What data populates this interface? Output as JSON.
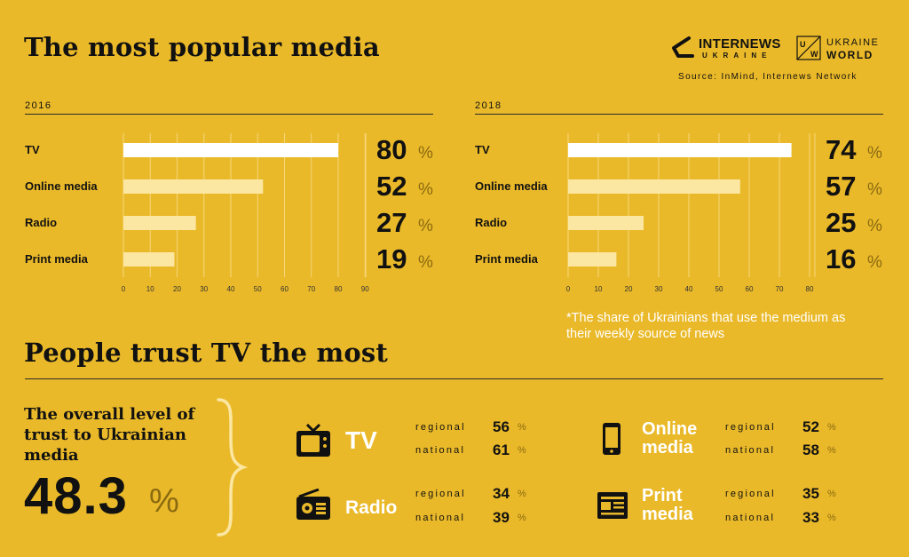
{
  "header": {
    "title": "The most popular media",
    "logo_internews": "INTERNEWS",
    "logo_internews_sub": "UKRAINE",
    "logo_uw_mark": "U W",
    "logo_uw_line1": "UKRAINE",
    "logo_uw_line2": "WORLD",
    "source": "Source: InMind, Internews Network"
  },
  "footnote": "*The share of Ukrainians that use the medium as their weekly source of news",
  "pct_symbol": "%",
  "chart_data": [
    {
      "type": "bar",
      "orientation": "horizontal",
      "title": "2016",
      "categories": [
        "TV",
        "Online media",
        "Radio",
        "Print media"
      ],
      "values": [
        80,
        52,
        27,
        19
      ],
      "value_labels": [
        "80",
        "52",
        "27",
        "19"
      ],
      "xlim": [
        0,
        90
      ],
      "ticks": [
        0,
        10,
        20,
        30,
        40,
        50,
        60,
        70,
        80,
        90
      ],
      "grid": true,
      "colors": [
        "#FFFFFF",
        "#FBE7A2",
        "#FBE7A2",
        "#FBE7A2"
      ]
    },
    {
      "type": "bar",
      "orientation": "horizontal",
      "title": "2018",
      "categories": [
        "TV",
        "Online media",
        "Radio",
        "Print media"
      ],
      "values": [
        74,
        57,
        25,
        16
      ],
      "value_labels": [
        "74",
        "57",
        "25",
        "16"
      ],
      "xlim": [
        0,
        80
      ],
      "ticks": [
        0,
        10,
        20,
        30,
        40,
        50,
        60,
        70,
        80
      ],
      "grid": true,
      "colors": [
        "#FFFFFF",
        "#FBE7A2",
        "#FBE7A2",
        "#FBE7A2"
      ]
    }
  ],
  "trust": {
    "title": "People trust TV the most",
    "overall_label": "The overall level of trust to Ukrainian media",
    "overall_value": "48.3",
    "regional_label": "regional",
    "national_label": "national",
    "media": [
      {
        "name": "TV",
        "icon": "tv-icon",
        "regional": "56",
        "national": "61"
      },
      {
        "name": "Online media",
        "icon": "smartphone-icon",
        "regional": "52",
        "national": "58"
      },
      {
        "name": "Radio",
        "icon": "radio-icon",
        "regional": "34",
        "national": "39"
      },
      {
        "name": "Print media",
        "icon": "newspaper-icon",
        "regional": "35",
        "national": "33"
      }
    ]
  }
}
